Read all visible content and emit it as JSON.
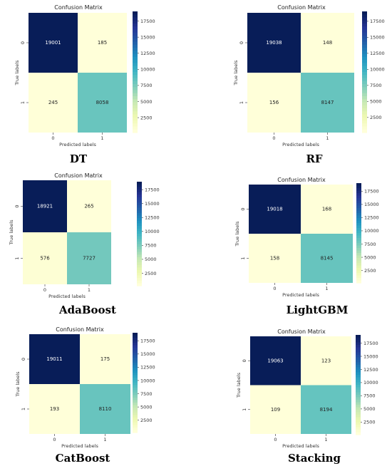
{
  "chart_data": [
    {
      "type": "heatmap",
      "title": "Confusion Matrix",
      "caption": "DT",
      "xlabel": "Predicted labels",
      "ylabel": "True labels",
      "x_ticks": [
        "0",
        "1"
      ],
      "y_ticks": [
        "0",
        "1"
      ],
      "values": [
        [
          19001,
          185
        ],
        [
          245,
          8058
        ]
      ],
      "colorbar_ticks": [
        "17500",
        "15000",
        "12500",
        "10000",
        "7500",
        "5000",
        "2500"
      ],
      "colormap": "YlGnBu"
    },
    {
      "type": "heatmap",
      "title": "Confusion Matrix",
      "caption": "RF",
      "xlabel": "Predicted labels",
      "ylabel": "True labels",
      "x_ticks": [
        "0",
        "1"
      ],
      "y_ticks": [
        "0",
        "1"
      ],
      "values": [
        [
          19038,
          148
        ],
        [
          156,
          8147
        ]
      ],
      "colorbar_ticks": [
        "17500",
        "15000",
        "12500",
        "10000",
        "7500",
        "5000",
        "2500"
      ],
      "colormap": "YlGnBu"
    },
    {
      "type": "heatmap",
      "title": "Confusion Matrix",
      "caption": "AdaBoost",
      "xlabel": "Predicted labels",
      "ylabel": "True labels",
      "x_ticks": [
        "0",
        "1"
      ],
      "y_ticks": [
        "0",
        "1"
      ],
      "values": [
        [
          18921,
          265
        ],
        [
          576,
          7727
        ]
      ],
      "colorbar_ticks": [
        "17500",
        "15000",
        "12500",
        "10000",
        "7500",
        "5000",
        "2500"
      ],
      "colormap": "YlGnBu"
    },
    {
      "type": "heatmap",
      "title": "Confusion Matrix",
      "caption": "LightGBM",
      "xlabel": "Predicted labels",
      "ylabel": "True labels",
      "x_ticks": [
        "0",
        "1"
      ],
      "y_ticks": [
        "0",
        "1"
      ],
      "values": [
        [
          19018,
          168
        ],
        [
          158,
          8145
        ]
      ],
      "colorbar_ticks": [
        "17500",
        "15000",
        "12500",
        "10000",
        "7500",
        "5000",
        "2500"
      ],
      "colormap": "YlGnBu"
    },
    {
      "type": "heatmap",
      "title": "Confusion Matrix",
      "caption": "CatBoost",
      "xlabel": "Predicted labels",
      "ylabel": "True labels",
      "x_ticks": [
        "0",
        "1"
      ],
      "y_ticks": [
        "0",
        "1"
      ],
      "values": [
        [
          19011,
          175
        ],
        [
          193,
          8110
        ]
      ],
      "colorbar_ticks": [
        "17500",
        "15000",
        "12500",
        "10000",
        "7500",
        "5000",
        "2500"
      ],
      "colormap": "YlGnBu"
    },
    {
      "type": "heatmap",
      "title": "Confusion Matrix",
      "caption": "Stacking",
      "xlabel": "Predicted labels",
      "ylabel": "True labels",
      "x_ticks": [
        "0",
        "1"
      ],
      "y_ticks": [
        "0",
        "1"
      ],
      "values": [
        [
          19063,
          123
        ],
        [
          109,
          8194
        ]
      ],
      "colorbar_ticks": [
        "17500",
        "15000",
        "12500",
        "10000",
        "7500",
        "5000",
        "2500"
      ],
      "colormap": "YlGnBu"
    }
  ]
}
